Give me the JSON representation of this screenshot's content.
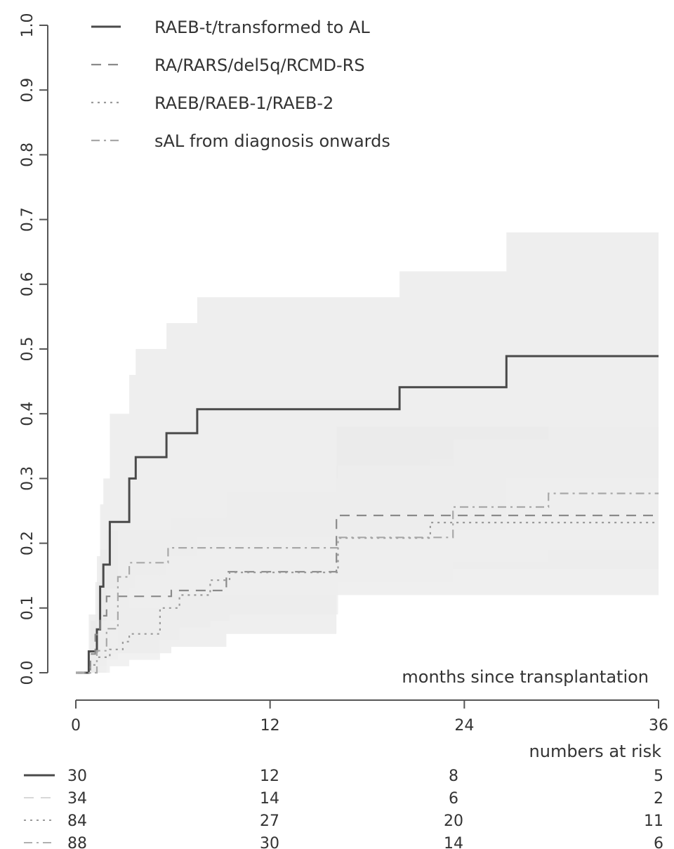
{
  "chart_data": {
    "type": "line",
    "step": true,
    "xlabel": "months since transplantation",
    "ylabel": "",
    "xlim": [
      0,
      36
    ],
    "ylim": [
      0,
      1
    ],
    "xticks": [
      "0",
      "12",
      "24",
      "36"
    ],
    "yticks": [
      "0.0",
      "0.1",
      "0.2",
      "0.3",
      "0.4",
      "0.5",
      "0.6",
      "0.7",
      "0.8",
      "0.9",
      "1.0"
    ],
    "grid": false,
    "legend_position": "top-left",
    "series": [
      {
        "name": "RAEB-t/transformed to AL",
        "style": "solid",
        "color": "#4a4a4a",
        "x": [
          0,
          0.8,
          1.0,
          1.3,
          1.5,
          1.7,
          2.1,
          3.3,
          3.7,
          5.6,
          7.5,
          20.0,
          26.6,
          36
        ],
        "y": [
          0,
          0.033,
          0.033,
          0.067,
          0.133,
          0.167,
          0.233,
          0.3,
          0.333,
          0.37,
          0.407,
          0.441,
          0.489,
          0.489
        ],
        "band_lower": [
          0,
          0,
          0,
          0,
          0.02,
          0.04,
          0.08,
          0.13,
          0.15,
          0.18,
          0.21,
          0.22,
          0.3,
          0.3
        ],
        "band_upper": [
          0,
          0.09,
          0.09,
          0.18,
          0.26,
          0.3,
          0.4,
          0.46,
          0.5,
          0.54,
          0.58,
          0.62,
          0.68,
          0.68
        ],
        "band_color": "#e8e8e8"
      },
      {
        "name": "RA/RARS/del5q/RCMD-RS",
        "style": "dashed",
        "color": "#8a8a8a",
        "x": [
          0,
          0.9,
          1.2,
          1.5,
          1.9,
          5.9,
          9.3,
          16.1,
          36
        ],
        "y": [
          0,
          0.029,
          0.059,
          0.088,
          0.118,
          0.127,
          0.156,
          0.243,
          0.243
        ],
        "band_lower": [
          0,
          0,
          0,
          0.01,
          0.03,
          0.04,
          0.06,
          0.12,
          0.12
        ],
        "band_upper": [
          0,
          0.08,
          0.14,
          0.19,
          0.22,
          0.24,
          0.28,
          0.38,
          0.38
        ],
        "band_color": "#eaeaea"
      },
      {
        "name": "RAEB/RAEB-1/RAEB-2",
        "style": "dotted",
        "color": "#9a9a9a",
        "x": [
          0,
          0.9,
          1.3,
          2.1,
          2.9,
          3.3,
          5.2,
          6.4,
          8.3,
          9.5,
          16.2,
          20.0,
          21.9,
          36
        ],
        "y": [
          0,
          0.012,
          0.024,
          0.036,
          0.048,
          0.06,
          0.1,
          0.12,
          0.143,
          0.155,
          0.208,
          0.208,
          0.232,
          0.232
        ],
        "band_lower": [
          0,
          0,
          0,
          0.01,
          0.01,
          0.02,
          0.05,
          0.07,
          0.08,
          0.09,
          0.14,
          0.15,
          0.16,
          0.16
        ],
        "band_upper": [
          0,
          0.05,
          0.07,
          0.1,
          0.12,
          0.14,
          0.18,
          0.22,
          0.24,
          0.26,
          0.3,
          0.31,
          0.33,
          0.33
        ],
        "band_color": "#ececec"
      },
      {
        "name": "sAL from diagnosis onwards",
        "style": "dashdot",
        "color": "#a8a8a8",
        "x": [
          0,
          1.3,
          1.9,
          2.6,
          3.3,
          5.7,
          12.6,
          16.2,
          23.3,
          29.2,
          36
        ],
        "y": [
          0,
          0.034,
          0.068,
          0.148,
          0.17,
          0.193,
          0.193,
          0.209,
          0.256,
          0.277,
          0.277
        ],
        "band_lower": [
          0,
          0,
          0.02,
          0.08,
          0.1,
          0.12,
          0.12,
          0.14,
          0.17,
          0.19,
          0.19
        ],
        "band_upper": [
          0,
          0.08,
          0.13,
          0.23,
          0.26,
          0.29,
          0.3,
          0.32,
          0.36,
          0.4,
          0.4
        ],
        "band_color": "#ededed"
      }
    ],
    "risk_table": {
      "title": "numbers at risk",
      "times": [
        0,
        12,
        24,
        36
      ],
      "rows": [
        {
          "style": "solid",
          "color": "#4a4a4a",
          "values": [
            "30",
            "12",
            "8",
            "5"
          ]
        },
        {
          "style": "dashed",
          "color": "#d8d8d8",
          "values": [
            "34",
            "14",
            "6",
            "2"
          ]
        },
        {
          "style": "dotted",
          "color": "#9a9a9a",
          "values": [
            "84",
            "27",
            "20",
            "11"
          ]
        },
        {
          "style": "dashdot",
          "color": "#b0b0b0",
          "values": [
            "88",
            "30",
            "14",
            "6"
          ]
        }
      ]
    }
  }
}
